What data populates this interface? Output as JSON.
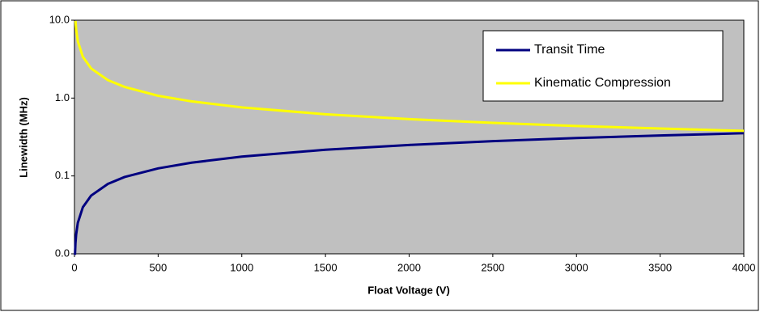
{
  "chart_data": {
    "type": "line",
    "xlabel": "Float Voltage (V)",
    "ylabel": "Linewidth (MHz)",
    "x": [
      3,
      6,
      10,
      20,
      50,
      100,
      200,
      300,
      500,
      700,
      1000,
      1500,
      2000,
      2500,
      3000,
      3500,
      4000
    ],
    "series": [
      {
        "name": "Transit Time",
        "color": "#000080",
        "values": [
          0.0097,
          0.0137,
          0.0177,
          0.025,
          0.0396,
          0.056,
          0.079,
          0.097,
          0.125,
          0.148,
          0.177,
          0.217,
          0.25,
          0.28,
          0.307,
          0.331,
          0.354
        ]
      },
      {
        "name": "Kinematic Compression",
        "color": "#ffff00",
        "values": [
          null,
          9.8,
          7.59,
          5.37,
          3.39,
          2.4,
          1.7,
          1.39,
          1.07,
          0.907,
          0.759,
          0.62,
          0.537,
          0.48,
          0.438,
          0.406,
          0.379
        ]
      }
    ],
    "xlim": [
      0,
      4000
    ],
    "xticks": [
      0,
      500,
      1000,
      1500,
      2000,
      2500,
      3000,
      3500,
      4000
    ],
    "ylim": [
      0.01,
      10
    ],
    "yticks": [
      {
        "value": 0.01,
        "label": "0.0"
      },
      {
        "value": 0.1,
        "label": "0.1"
      },
      {
        "value": 1,
        "label": "1.0"
      },
      {
        "value": 10,
        "label": "10.0"
      }
    ],
    "log_y": true,
    "grid": false,
    "legend": "upper right",
    "plot_background": "#c0c0c0"
  }
}
